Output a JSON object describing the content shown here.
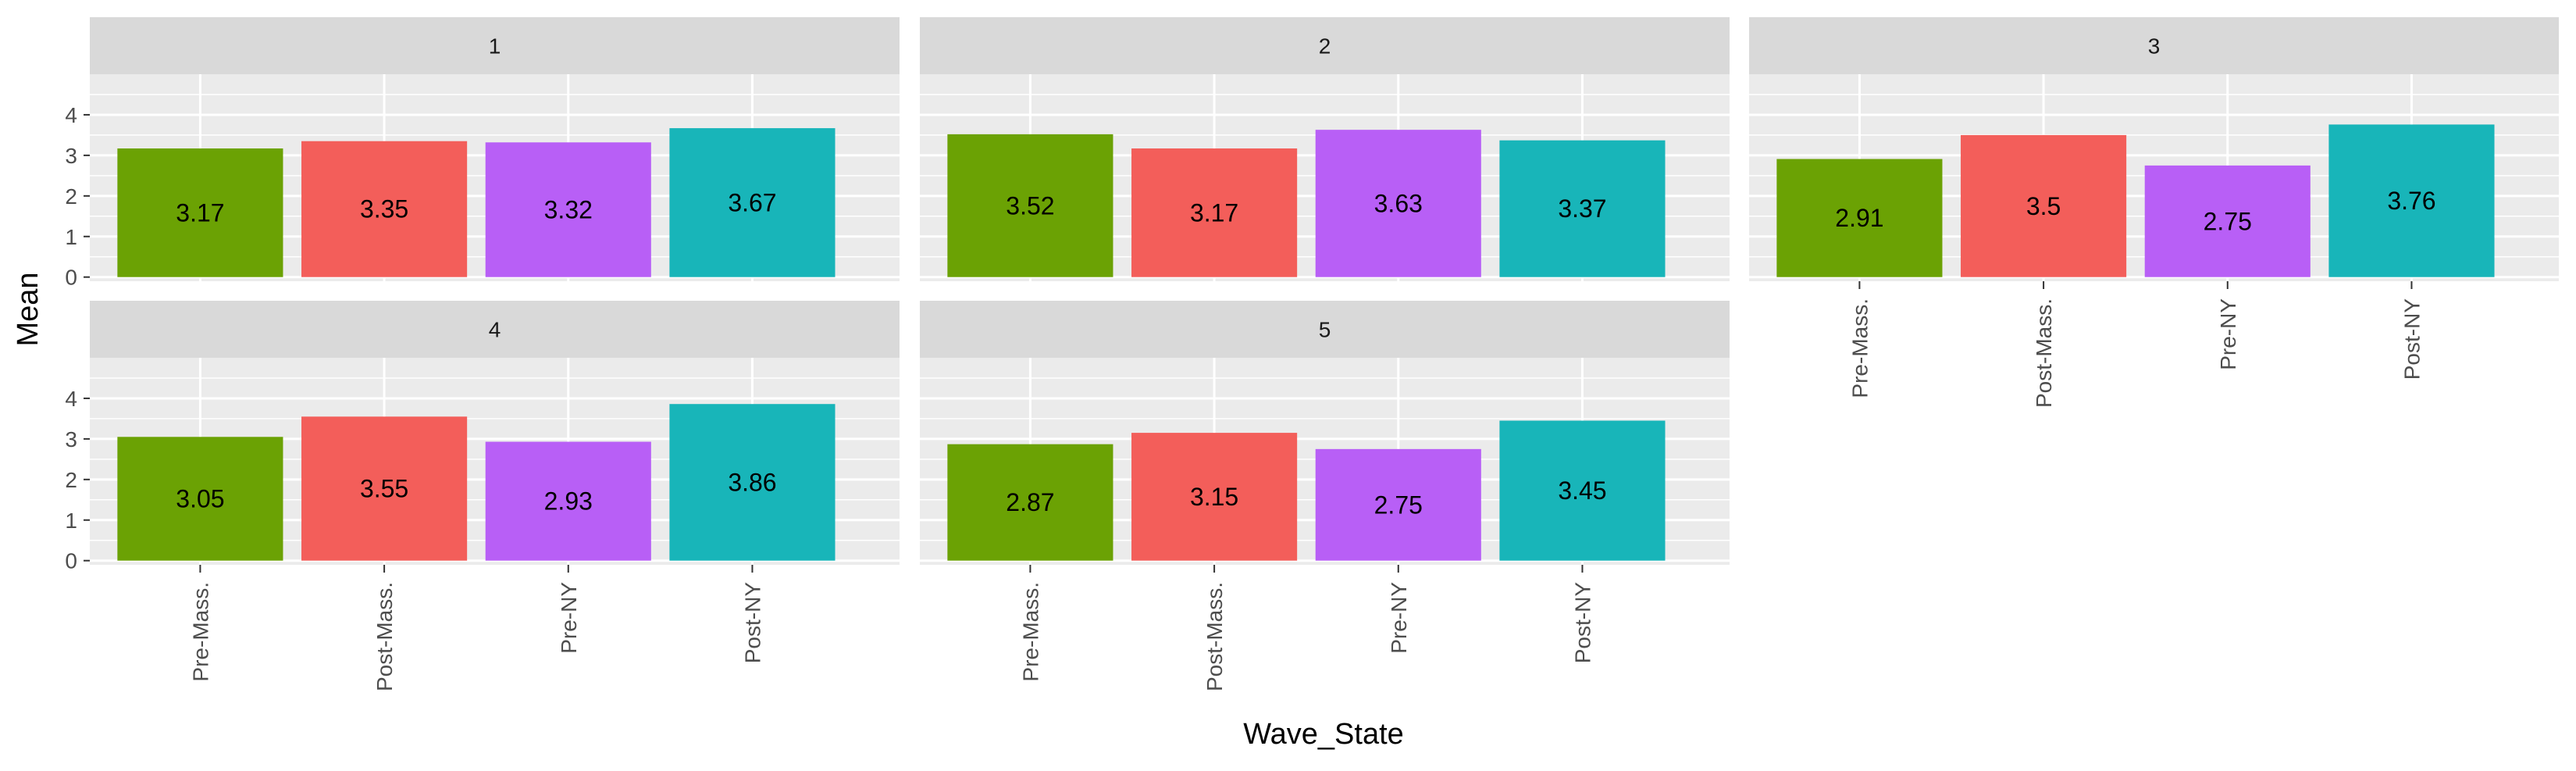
{
  "colors": {
    "panel_background": "#ebebeb",
    "strip_background": "#d9d9d9",
    "grid_major": "#ffffff",
    "Pre-Mass.": "#6ba204",
    "Post-Mass.": "#f35e5a",
    "Pre-NY": "#b85ff6",
    "Post-NY": "#18b5b9"
  },
  "chart_data": {
    "type": "bar",
    "xlabel": "Wave_State",
    "ylabel": "Mean",
    "ylim": [
      0,
      5
    ],
    "y_ticks": [
      "0",
      "1",
      "2",
      "3",
      "4"
    ],
    "categories": [
      "Pre-Mass.",
      "Post-Mass.",
      "Pre-NY",
      "Post-NY"
    ],
    "grid": true,
    "legend": "none",
    "facets": [
      {
        "strip": "1",
        "values": [
          3.17,
          3.35,
          3.32,
          3.67
        ],
        "labels": [
          "3.17",
          "3.35",
          "3.32",
          "3.67"
        ]
      },
      {
        "strip": "2",
        "values": [
          3.52,
          3.17,
          3.63,
          3.37
        ],
        "labels": [
          "3.52",
          "3.17",
          "3.63",
          "3.37"
        ]
      },
      {
        "strip": "3",
        "values": [
          2.91,
          3.5,
          2.75,
          3.76
        ],
        "labels": [
          "2.91",
          "3.5",
          "2.75",
          "3.76"
        ]
      },
      {
        "strip": "4",
        "values": [
          3.05,
          3.55,
          2.93,
          3.86
        ],
        "labels": [
          "3.05",
          "3.55",
          "2.93",
          "3.86"
        ]
      },
      {
        "strip": "5",
        "values": [
          2.87,
          3.15,
          2.75,
          3.45
        ],
        "labels": [
          "2.87",
          "3.15",
          "2.75",
          "3.45"
        ]
      }
    ]
  }
}
